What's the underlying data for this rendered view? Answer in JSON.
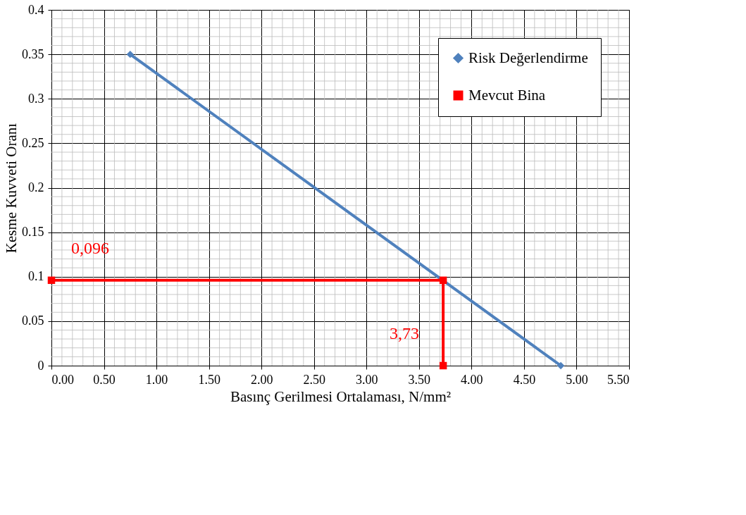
{
  "chart_data": {
    "type": "line",
    "xlabel": "Basınç Gerilmesi Ortalaması, N/mm²",
    "ylabel": "Kesme Kuvveti Oranı",
    "series": [
      {
        "name": "Risk Değerlendirme",
        "color": "#4f81bd",
        "marker": "diamond",
        "x": [
          0.75,
          4.85
        ],
        "values": [
          0.35,
          0
        ]
      },
      {
        "name": "Mevcut Bina",
        "color": "#ff0000",
        "marker": "square",
        "x": [
          0,
          3.73,
          3.73
        ],
        "values": [
          0.096,
          0.096,
          0
        ]
      }
    ],
    "annotations": [
      {
        "text": "0,096",
        "x": 0,
        "y": 0.096
      },
      {
        "text": "3,73",
        "x": 3.73,
        "y": 0
      }
    ],
    "xlim": [
      0,
      5.5
    ],
    "ylim": [
      0,
      0.4
    ],
    "xticks": [
      {
        "value": 0,
        "label": "0.00"
      },
      {
        "value": 0.5,
        "label": "0.50"
      },
      {
        "value": 1,
        "label": "1.00"
      },
      {
        "value": 1.5,
        "label": "1.50"
      },
      {
        "value": 2,
        "label": "2.00"
      },
      {
        "value": 2.5,
        "label": "2.50"
      },
      {
        "value": 3,
        "label": "3.00"
      },
      {
        "value": 3.5,
        "label": "3.50"
      },
      {
        "value": 4,
        "label": "4.00"
      },
      {
        "value": 4.5,
        "label": "4.50"
      },
      {
        "value": 5,
        "label": "5.00"
      },
      {
        "value": 5.5,
        "label": "5.50"
      }
    ],
    "yticks": [
      0,
      0.05,
      0.1,
      0.15,
      0.2,
      0.25,
      0.3,
      0.35,
      0.4
    ],
    "grid": true,
    "legend": "top right",
    "line_style": "solid"
  }
}
